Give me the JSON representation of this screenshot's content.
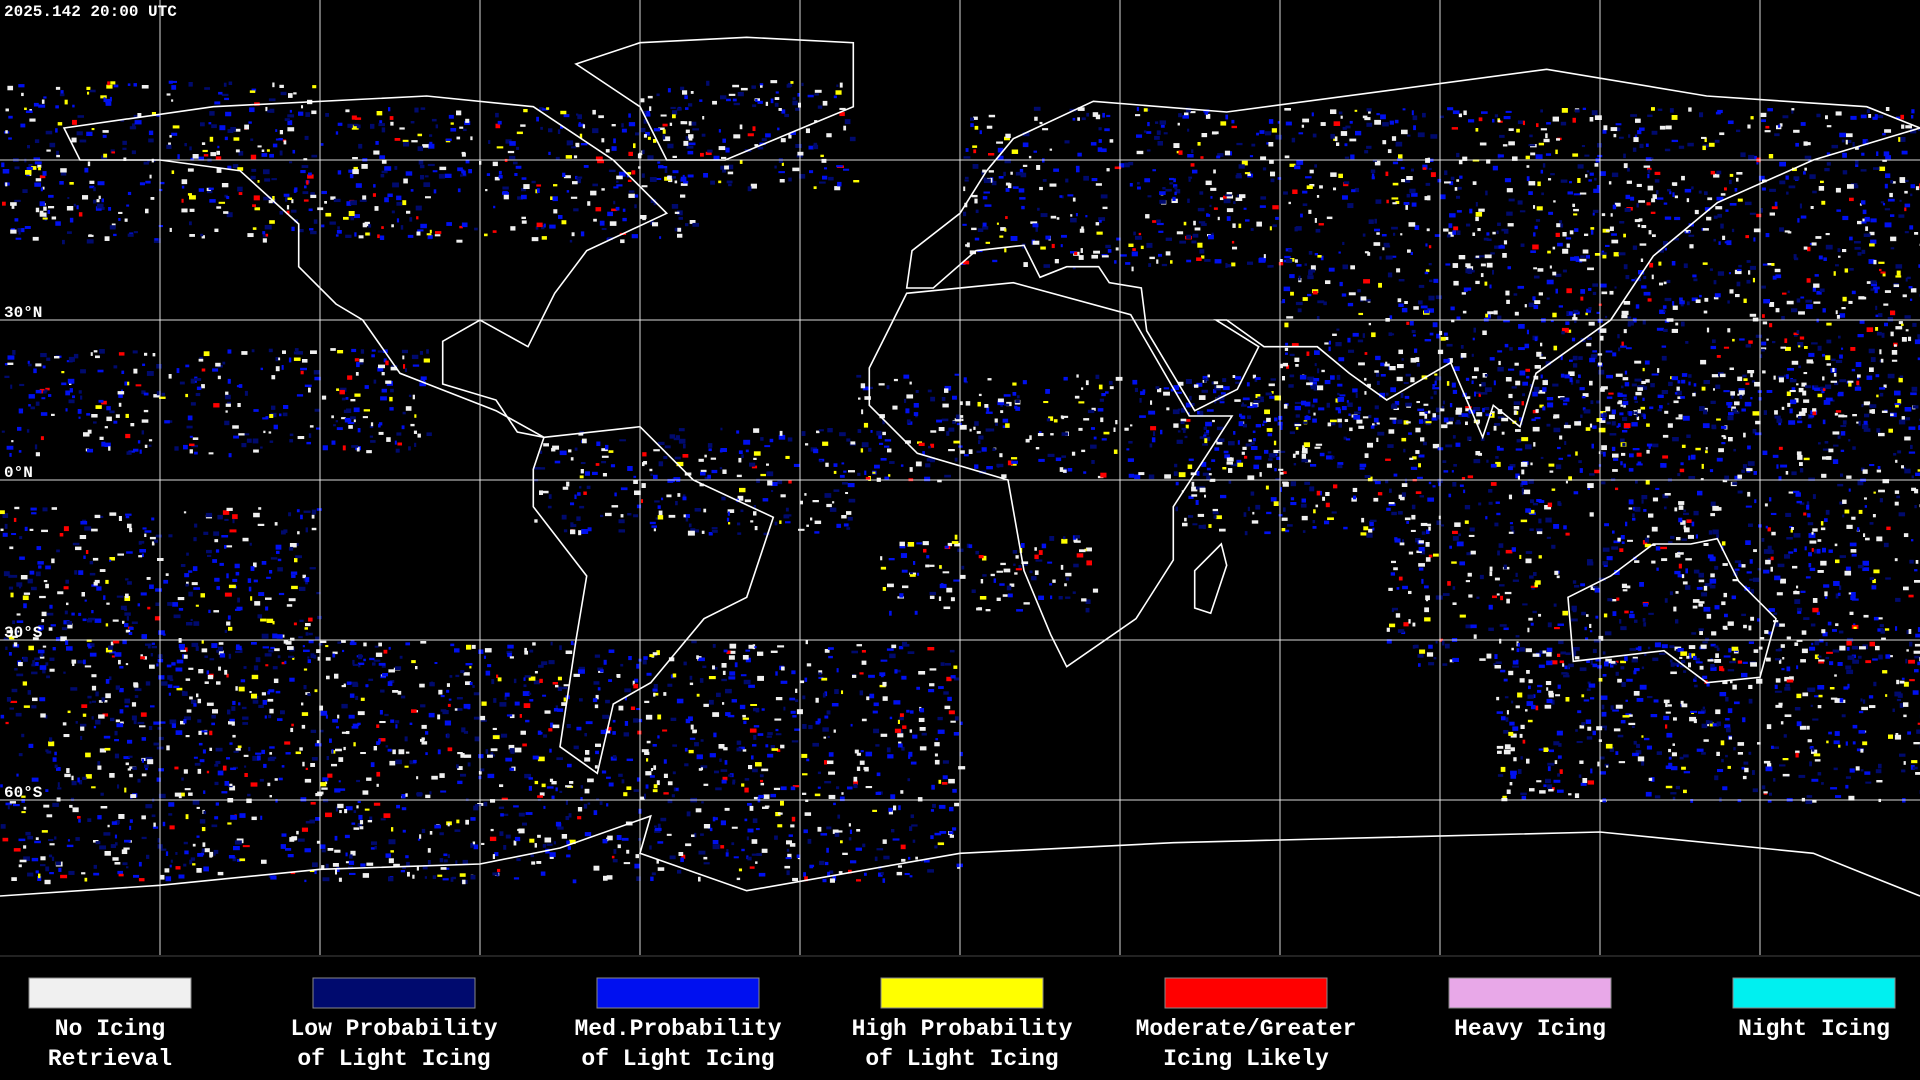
{
  "header": {
    "title": "2025.142 20:00 UTC"
  },
  "map": {
    "lat_labels": [
      "30°N",
      "0°N",
      "30°S",
      "60°S"
    ]
  },
  "legend": {
    "items": [
      {
        "color": "#f0f0f0",
        "lines": [
          "No Icing",
          "Retrieval"
        ]
      },
      {
        "color": "#000a6e",
        "lines": [
          "Low Probability",
          "of Light Icing"
        ]
      },
      {
        "color": "#0010f0",
        "lines": [
          "Med.Probability",
          "of Light Icing"
        ]
      },
      {
        "color": "#ffff00",
        "lines": [
          "High Probability",
          "of Light Icing"
        ]
      },
      {
        "color": "#ff0000",
        "lines": [
          "Moderate/Greater",
          "Icing Likely"
        ]
      },
      {
        "color": "#e8a8e8",
        "lines": [
          "Heavy Icing"
        ]
      },
      {
        "color": "#00f0f0",
        "lines": [
          "Night Icing"
        ]
      }
    ]
  }
}
